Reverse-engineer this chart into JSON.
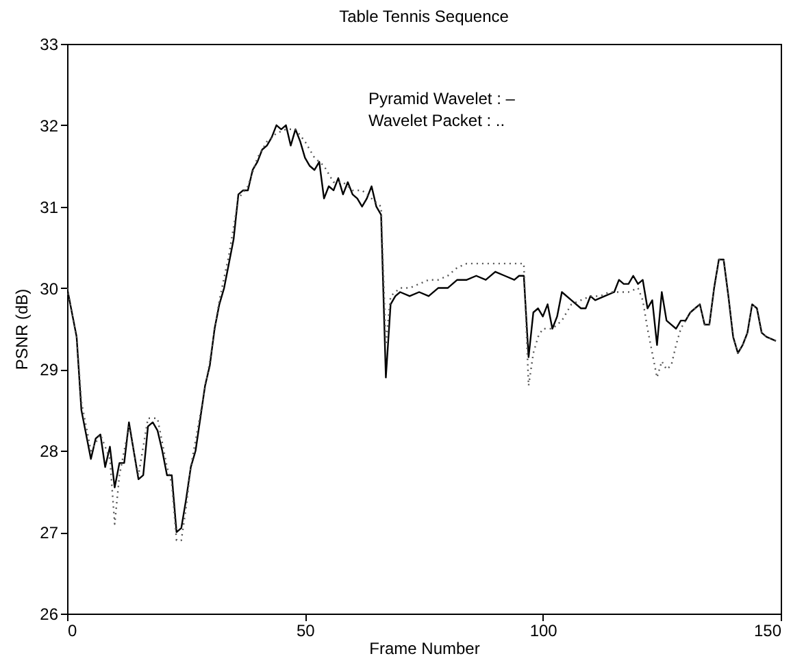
{
  "chart_data": {
    "type": "line",
    "title": "Table Tennis Sequence",
    "xlabel": "Frame Number",
    "ylabel": "PSNR (dB)",
    "xlim": [
      0,
      150
    ],
    "xticks": [
      0,
      50,
      100,
      150
    ],
    "ylim": [
      26,
      33
    ],
    "yticks": [
      26,
      27,
      28,
      29,
      30,
      31,
      32,
      33
    ],
    "grid": false,
    "marker": "none",
    "annotations": [
      "Pyramid Wavelet  : –",
      "Wavelet Packet : .."
    ],
    "series": [
      {
        "color": "#000000",
        "line_style": "solid",
        "x": [
          0,
          2,
          3,
          5,
          6,
          7,
          8,
          9,
          10,
          11,
          12,
          13,
          14,
          15,
          16,
          17,
          18,
          19,
          20,
          21,
          22,
          23,
          24,
          25,
          26,
          27,
          28,
          29,
          30,
          31,
          32,
          33,
          34,
          35,
          36,
          37,
          38,
          39,
          40,
          41,
          42,
          43,
          44,
          45,
          46,
          47,
          48,
          49,
          50,
          51,
          52,
          53,
          54,
          55,
          56,
          57,
          58,
          59,
          60,
          61,
          62,
          63,
          64,
          65,
          66,
          67,
          68,
          69,
          70,
          72,
          74,
          76,
          78,
          80,
          82,
          84,
          86,
          88,
          90,
          92,
          94,
          95,
          96,
          97,
          98,
          99,
          100,
          101,
          102,
          103,
          104,
          106,
          108,
          109,
          110,
          111,
          113,
          115,
          116,
          117,
          118,
          119,
          120,
          121,
          122,
          123,
          124,
          125,
          126,
          127,
          128,
          129,
          130,
          131,
          132,
          133,
          134,
          135,
          136,
          137,
          138,
          139,
          140,
          141,
          142,
          143,
          144,
          145,
          146,
          147,
          149
        ],
        "values": [
          30.0,
          29.4,
          28.5,
          27.9,
          28.15,
          28.2,
          27.8,
          28.05,
          27.55,
          27.85,
          27.85,
          28.35,
          28.0,
          27.65,
          27.7,
          28.3,
          28.35,
          28.25,
          28.0,
          27.7,
          27.7,
          27.0,
          27.05,
          27.4,
          27.8,
          28.0,
          28.4,
          28.8,
          29.05,
          29.5,
          29.8,
          30.0,
          30.3,
          30.6,
          31.15,
          31.2,
          31.2,
          31.45,
          31.55,
          31.7,
          31.75,
          31.85,
          32.0,
          31.95,
          32.0,
          31.75,
          31.95,
          31.8,
          31.6,
          31.5,
          31.45,
          31.55,
          31.1,
          31.25,
          31.2,
          31.35,
          31.15,
          31.3,
          31.15,
          31.1,
          31.0,
          31.1,
          31.25,
          31.0,
          30.9,
          28.9,
          29.8,
          29.9,
          29.95,
          29.9,
          29.95,
          29.9,
          30.0,
          30.0,
          30.1,
          30.1,
          30.15,
          30.1,
          30.2,
          30.15,
          30.1,
          30.15,
          30.15,
          29.15,
          29.7,
          29.75,
          29.65,
          29.8,
          29.5,
          29.65,
          29.95,
          29.85,
          29.75,
          29.75,
          29.9,
          29.85,
          29.9,
          29.95,
          30.1,
          30.05,
          30.05,
          30.15,
          30.05,
          30.1,
          29.75,
          29.85,
          29.3,
          29.95,
          29.6,
          29.55,
          29.5,
          29.6,
          29.6,
          29.7,
          29.75,
          29.8,
          29.55,
          29.55,
          30.0,
          30.35,
          30.35,
          29.9,
          29.4,
          29.2,
          29.3,
          29.45,
          29.8,
          29.75,
          29.45,
          29.4,
          29.35
        ]
      },
      {
        "color": "#555555",
        "line_style": "dotted",
        "x": [
          0,
          2,
          3,
          5,
          7,
          9,
          10,
          11,
          13,
          15,
          17,
          18,
          19,
          20,
          21,
          22,
          23,
          24,
          25,
          26,
          28,
          30,
          32,
          34,
          36,
          38,
          40,
          42,
          44,
          46,
          48,
          50,
          52,
          54,
          56,
          58,
          60,
          62,
          64,
          66,
          67,
          68,
          70,
          72,
          74,
          76,
          78,
          80,
          82,
          84,
          86,
          88,
          90,
          92,
          94,
          96,
          97,
          98,
          99,
          100,
          102,
          104,
          106,
          108,
          110,
          112,
          114,
          116,
          118,
          120,
          121,
          122,
          124,
          125,
          126,
          127,
          128,
          129,
          130,
          131,
          132,
          133,
          134,
          135,
          136,
          137,
          138,
          139,
          140,
          141,
          142,
          143,
          144,
          145,
          146,
          147,
          149
        ],
        "values": [
          30.0,
          29.4,
          28.6,
          28.0,
          28.2,
          27.9,
          27.1,
          27.7,
          28.3,
          27.7,
          28.4,
          28.4,
          28.4,
          28.1,
          27.8,
          27.6,
          26.9,
          26.9,
          27.3,
          27.8,
          28.45,
          29.1,
          29.85,
          30.4,
          31.1,
          31.25,
          31.6,
          31.8,
          31.9,
          31.95,
          31.95,
          31.8,
          31.6,
          31.5,
          31.3,
          31.3,
          31.2,
          31.2,
          31.1,
          31.0,
          29.3,
          29.9,
          30.0,
          30.0,
          30.05,
          30.1,
          30.1,
          30.15,
          30.25,
          30.3,
          30.3,
          30.3,
          30.3,
          30.3,
          30.3,
          30.3,
          28.8,
          29.2,
          29.4,
          29.5,
          29.5,
          29.6,
          29.8,
          29.85,
          29.9,
          29.9,
          29.95,
          29.95,
          29.95,
          30.0,
          29.85,
          29.5,
          28.9,
          29.1,
          29.0,
          29.05,
          29.3,
          29.5,
          29.6,
          29.7,
          29.75,
          29.8,
          29.55,
          29.55,
          30.0,
          30.35,
          30.35,
          29.9,
          29.4,
          29.2,
          29.3,
          29.45,
          29.8,
          29.75,
          29.45,
          29.4,
          29.35
        ]
      }
    ]
  }
}
